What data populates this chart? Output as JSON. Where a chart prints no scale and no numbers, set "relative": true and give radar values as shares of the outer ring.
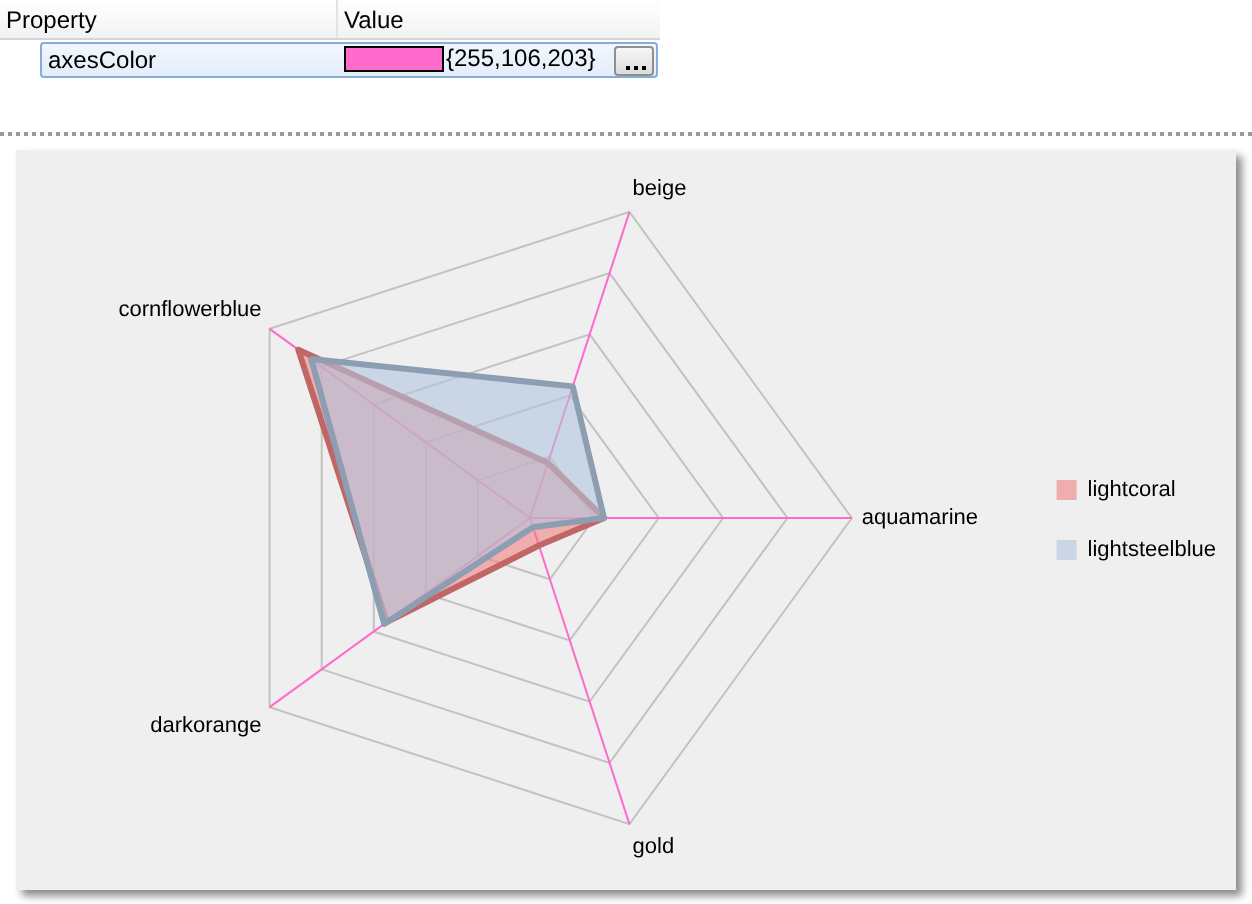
{
  "chart_data": {
    "type": "radar",
    "categories": [
      "beige",
      "aquamarine",
      "gold",
      "darkorange",
      "cornflowerblue"
    ],
    "series": [
      {
        "name": "lightcoral",
        "color": "#f08080",
        "values": [
          0.18,
          0.23,
          0.09,
          0.55,
          0.89
        ]
      },
      {
        "name": "lightsteelblue",
        "color": "#b0c4de",
        "values": [
          0.43,
          0.23,
          0.03,
          0.56,
          0.84
        ]
      }
    ],
    "relative": true,
    "grid": true,
    "legend": "right",
    "annotations": [
      "Property",
      "Value",
      "axesColor",
      "{255,106,203}"
    ]
  }
}
